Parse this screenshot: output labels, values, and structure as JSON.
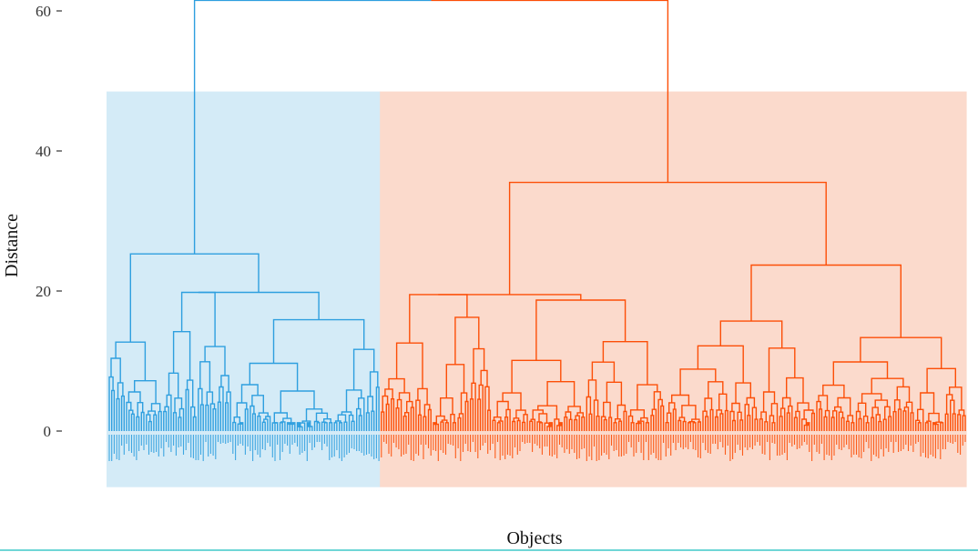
{
  "chart_data": {
    "type": "dendrogram",
    "xlabel": "Objects",
    "ylabel": "Distance",
    "ylim": [
      -8,
      61
    ],
    "y_ticks": [
      0,
      20,
      40,
      60
    ],
    "y_tick_labels": [
      "0",
      "20",
      "40",
      "60"
    ],
    "root_height": 61.5,
    "grid": false,
    "clusters": [
      {
        "color": "#2e9fdf",
        "fill": "#d4ebf7",
        "object_count": 110,
        "merge_height": 25.3,
        "rect_top": 48.5,
        "subclusters": [
          {
            "height": 12.7,
            "leaves": 22
          },
          {
            "height": 19.8,
            "inner_height": 14.2,
            "leaves": 28
          },
          {
            "height": 15.9,
            "leaves": 60
          }
        ]
      },
      {
        "color": "#fc4e07",
        "fill": "#fbdacc",
        "object_count": 237,
        "merge_height": 35.5,
        "rect_top": 48.5,
        "subclusters": [
          {
            "height": 19.5,
            "leaves": 45
          },
          {
            "height": 18.7,
            "leaves": 70
          },
          {
            "height": 23.7,
            "inner_height": 15.7,
            "leaves": 122
          }
        ]
      }
    ]
  }
}
